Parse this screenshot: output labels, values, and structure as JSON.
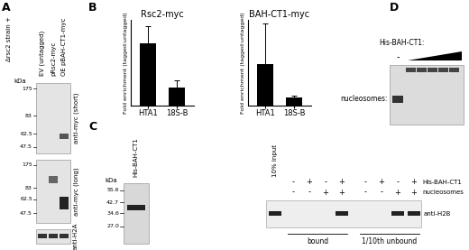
{
  "panels": {
    "A": {
      "letter": "A",
      "header": "Δrsc2 strain +",
      "lanes": [
        "EV (untagged)",
        "pRsc2-myc",
        "OE pBAH-CT1-myc"
      ],
      "kda_label": "kDa",
      "blots": [
        {
          "label": "anti-myc (short)",
          "markers": [
            175,
            83,
            62.5,
            47.5
          ]
        },
        {
          "label": "anti-myc (long)",
          "markers": [
            175,
            83,
            62.5,
            47.5
          ]
        },
        {
          "label": "anti-H2A",
          "markers": []
        }
      ]
    },
    "B": {
      "letter": "B"
    },
    "C": {
      "letter": "C",
      "gel_label": "His-BAH-CT1",
      "kda_label": "kDa",
      "markers": [
        55.6,
        42.7,
        34.6,
        27.0
      ],
      "input_label": "10% input",
      "rows": [
        {
          "name": "His-BAH-CT1",
          "signs": [
            "-",
            "+",
            "-",
            "+",
            "-",
            "+",
            "-",
            "+"
          ]
        },
        {
          "name": "nucleosomes",
          "signs": [
            "-",
            "-",
            "+",
            "+",
            "-",
            "-",
            "+",
            "+"
          ]
        }
      ],
      "groups": [
        "bound",
        "1/10th unbound"
      ],
      "blot_label": "anti-H2B"
    },
    "D": {
      "letter": "D",
      "titration_label": "His-BAH-CT1:",
      "minus": "-",
      "band_label": "nucleosomes:"
    }
  },
  "chart_data": [
    {
      "type": "bar",
      "title": "Rsc2-myc",
      "ylabel": "Fold enrichment (tagged:untagged)",
      "categories": [
        "HTA1",
        "18S-B"
      ],
      "values": [
        65,
        19
      ],
      "errors": [
        18,
        8
      ],
      "color": "#000000",
      "ylim": [
        0,
        90
      ],
      "tick_labels": "x"
    },
    {
      "type": "bar",
      "title": "BAH-CT1-myc",
      "ylabel": "Fold enrichment (tagged:untagged)",
      "categories": [
        "HTA1",
        "18S-B"
      ],
      "values": [
        12,
        2.5
      ],
      "errors": [
        12,
        0.5
      ],
      "color": "#000000",
      "ylim": [
        0,
        25
      ],
      "tick_labels": "x"
    }
  ]
}
